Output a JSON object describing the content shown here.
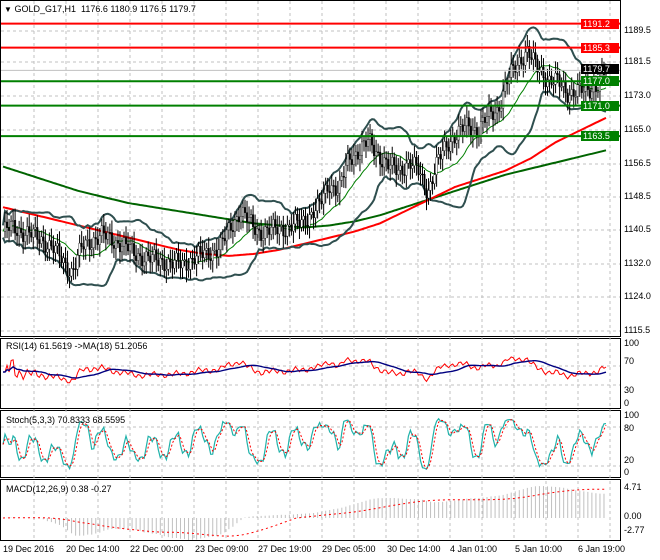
{
  "header": {
    "symbol": "GOLD_G17,H1",
    "ohlc": "1176.6 1180.9 1176.5 1179.7",
    "arrow": "▼"
  },
  "price_axis": [
    "1189.5",
    "1181.5",
    "1173.0",
    "1165.0",
    "1156.5",
    "1148.5",
    "1140.5",
    "1132.0",
    "1124.0",
    "1115.5"
  ],
  "levels": [
    {
      "label": "1191.2",
      "value": 1191.2,
      "color": "#ff0000"
    },
    {
      "label": "1185.3",
      "value": 1185.3,
      "color": "#ff0000"
    },
    {
      "label": "1177.0",
      "value": 1177.0,
      "color": "#008000"
    },
    {
      "label": "1171.0",
      "value": 1171.0,
      "color": "#008000"
    },
    {
      "label": "1163.5",
      "value": 1163.5,
      "color": "#008000"
    }
  ],
  "current_price": {
    "label": "1179.7",
    "value": 1179.7
  },
  "rsi": {
    "title": "RSI(14) 61.5619  ->MA(18) 51.2056",
    "axis": [
      "100",
      "70",
      "30",
      "0"
    ]
  },
  "stoch": {
    "title": "Stoch(5,3,3) 70.8333 68.5595",
    "axis": [
      "100",
      "80",
      "20",
      "0"
    ]
  },
  "macd": {
    "title": "MACD(12,26,9) 0.38 -0.27",
    "axis": [
      "4.71",
      "0.00",
      "-2.77"
    ]
  },
  "time_axis": [
    "19 Dec 2016",
    "20 Dec 14:00",
    "22 Dec 00:00",
    "23 Dec 09:00",
    "27 Dec 19:00",
    "29 Dec 05:00",
    "30 Dec 14:00",
    "4 Jan 01:00",
    "5 Jan 10:00",
    "6 Jan 19:00"
  ],
  "chart_data": {
    "type": "line",
    "title": "GOLD_G17,H1",
    "ylim": [
      1115.5,
      1193
    ],
    "close": [
      1140,
      1141,
      1140,
      1139,
      1138,
      1136,
      1133,
      1130,
      1136,
      1138,
      1139,
      1138,
      1137,
      1135,
      1134,
      1133,
      1133,
      1132,
      1132,
      1133,
      1134,
      1135,
      1136,
      1141,
      1145,
      1142,
      1140,
      1140,
      1141,
      1141,
      1142,
      1144,
      1146,
      1152,
      1150,
      1158,
      1160,
      1162,
      1159,
      1156,
      1155,
      1157,
      1155,
      1150,
      1157,
      1162,
      1164,
      1166,
      1165,
      1168,
      1170,
      1177,
      1181,
      1185,
      1180,
      1178,
      1177,
      1174,
      1175,
      1174,
      1176,
      1179.7
    ],
    "ma_green": [
      1156,
      1154,
      1152,
      1150,
      1148.5,
      1147,
      1146,
      1145,
      1144,
      1143,
      1142,
      1141.5,
      1141,
      1141.5,
      1142.5,
      1144,
      1146,
      1148,
      1150,
      1152,
      1154,
      1155.5,
      1157,
      1158.5,
      1160
    ],
    "ma_red": [
      1146,
      1144.5,
      1143,
      1141.5,
      1140,
      1138.5,
      1137,
      1135.5,
      1134.5,
      1134,
      1134.5,
      1135.5,
      1137,
      1138.5,
      1140,
      1142,
      1145,
      1148,
      1151,
      1153,
      1155,
      1158,
      1162,
      1165,
      1168
    ]
  }
}
